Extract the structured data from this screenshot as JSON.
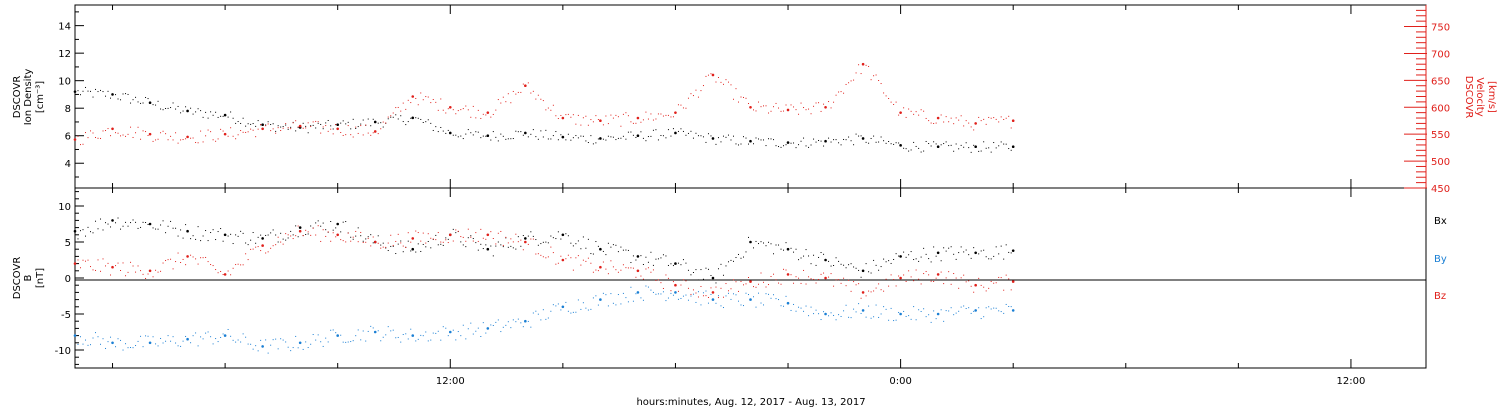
{
  "xlabel": "hours:minutes, Aug. 12, 2017 - Aug. 13, 2017",
  "x_ticks": [
    "12:00",
    "0:00",
    "12:00"
  ],
  "colors": {
    "black": "#000000",
    "red": "#e0201b",
    "blue": "#1a7fd4"
  },
  "chart_data": [
    {
      "type": "scatter",
      "panel": "top",
      "ylabel_left": [
        "DSCOVR",
        "Ion Density",
        "[cm⁻³]"
      ],
      "ylabel_right": [
        "DSCOVR",
        "Velocity",
        "[km/s]"
      ],
      "y_left_range": [
        2.2,
        15.5
      ],
      "y_left_ticks": [
        "4",
        "6",
        "8",
        "10",
        "12",
        "14"
      ],
      "y_right_range": [
        450,
        790
      ],
      "y_right_ticks": [
        "450",
        "500",
        "550",
        "600",
        "650",
        "700",
        "750"
      ],
      "x_hours_range": [
        2.0,
        38.0
      ],
      "series": [
        {
          "color": "black",
          "axis": "left",
          "x_hours": [
            2.0,
            3.0,
            4.0,
            5.0,
            6.0,
            7.0,
            8.0,
            9.0,
            10.0,
            11.0,
            12.0,
            13.0,
            14.0,
            15.0,
            16.0,
            17.0,
            18.0,
            19.0,
            20.0,
            21.0,
            22.0,
            23.0,
            24.0,
            25.0,
            26.0,
            27.0
          ],
          "values": [
            9.2,
            9.0,
            8.4,
            7.8,
            7.5,
            6.8,
            6.6,
            6.8,
            7.0,
            7.3,
            6.2,
            6.0,
            6.2,
            5.9,
            5.8,
            6.0,
            6.2,
            5.8,
            5.6,
            5.5,
            5.6,
            5.8,
            5.3,
            5.2,
            5.2,
            5.2
          ]
        },
        {
          "color": "red",
          "axis": "right",
          "x_hours": [
            2.0,
            3.0,
            4.0,
            5.0,
            6.0,
            7.0,
            8.0,
            9.0,
            10.0,
            11.0,
            12.0,
            13.0,
            14.0,
            15.0,
            16.0,
            17.0,
            18.0,
            19.0,
            20.0,
            21.0,
            22.0,
            23.0,
            24.0,
            25.0,
            26.0,
            27.0
          ],
          "values": [
            540,
            560,
            550,
            545,
            550,
            560,
            565,
            560,
            555,
            620,
            600,
            590,
            640,
            580,
            575,
            580,
            590,
            660,
            600,
            595,
            600,
            680,
            590,
            580,
            570,
            575
          ]
        }
      ]
    },
    {
      "type": "scatter",
      "panel": "bottom",
      "ylabel_left": [
        "DSCOVR",
        "B",
        "[nT]"
      ],
      "y_range": [
        -12.5,
        12.5
      ],
      "y_ticks": [
        "-10",
        "-5",
        "0",
        "5",
        "10"
      ],
      "x_hours_range": [
        2.0,
        38.0
      ],
      "series": [
        {
          "name": "Bx",
          "color": "black",
          "x_hours": [
            2.0,
            3.0,
            4.0,
            5.0,
            6.0,
            7.0,
            8.0,
            9.0,
            10.0,
            11.0,
            12.0,
            13.0,
            14.0,
            15.0,
            16.0,
            17.0,
            18.0,
            19.0,
            20.0,
            21.0,
            22.0,
            23.0,
            24.0,
            25.0,
            26.0,
            27.0
          ],
          "values": [
            6.5,
            8.0,
            7.5,
            6.5,
            6.0,
            5.5,
            7.0,
            7.5,
            5.0,
            4.0,
            6.0,
            4.0,
            5.5,
            6.0,
            4.0,
            3.0,
            2.0,
            0.0,
            5.0,
            4.0,
            2.5,
            1.0,
            3.0,
            3.5,
            3.5,
            3.8
          ]
        },
        {
          "name": "By",
          "color": "blue",
          "x_hours": [
            2.0,
            3.0,
            4.0,
            5.0,
            6.0,
            7.0,
            8.0,
            9.0,
            10.0,
            11.0,
            12.0,
            13.0,
            14.0,
            15.0,
            16.0,
            17.0,
            18.0,
            19.0,
            20.0,
            21.0,
            22.0,
            23.0,
            24.0,
            25.0,
            26.0,
            27.0
          ],
          "values": [
            -8.0,
            -9.0,
            -9.0,
            -8.5,
            -8.0,
            -9.5,
            -9.0,
            -8.0,
            -7.5,
            -8.0,
            -7.5,
            -7.0,
            -6.0,
            -4.0,
            -3.0,
            -2.0,
            -2.0,
            -3.0,
            -3.0,
            -3.5,
            -5.0,
            -4.5,
            -5.0,
            -5.0,
            -4.5,
            -4.5
          ]
        },
        {
          "name": "Bz",
          "color": "red",
          "x_hours": [
            2.0,
            3.0,
            4.0,
            5.0,
            6.0,
            7.0,
            8.0,
            9.0,
            10.0,
            11.0,
            12.0,
            13.0,
            14.0,
            15.0,
            16.0,
            17.0,
            18.0,
            19.0,
            20.0,
            21.0,
            22.0,
            23.0,
            24.0,
            25.0,
            26.0,
            27.0
          ],
          "values": [
            2.0,
            1.5,
            1.0,
            3.0,
            0.5,
            4.5,
            6.5,
            6.0,
            5.0,
            5.5,
            6.0,
            6.0,
            5.0,
            2.5,
            1.5,
            1.0,
            -1.0,
            -2.0,
            -0.5,
            0.5,
            0.0,
            -2.0,
            0.0,
            0.5,
            -1.0,
            -0.5
          ]
        }
      ]
    }
  ]
}
